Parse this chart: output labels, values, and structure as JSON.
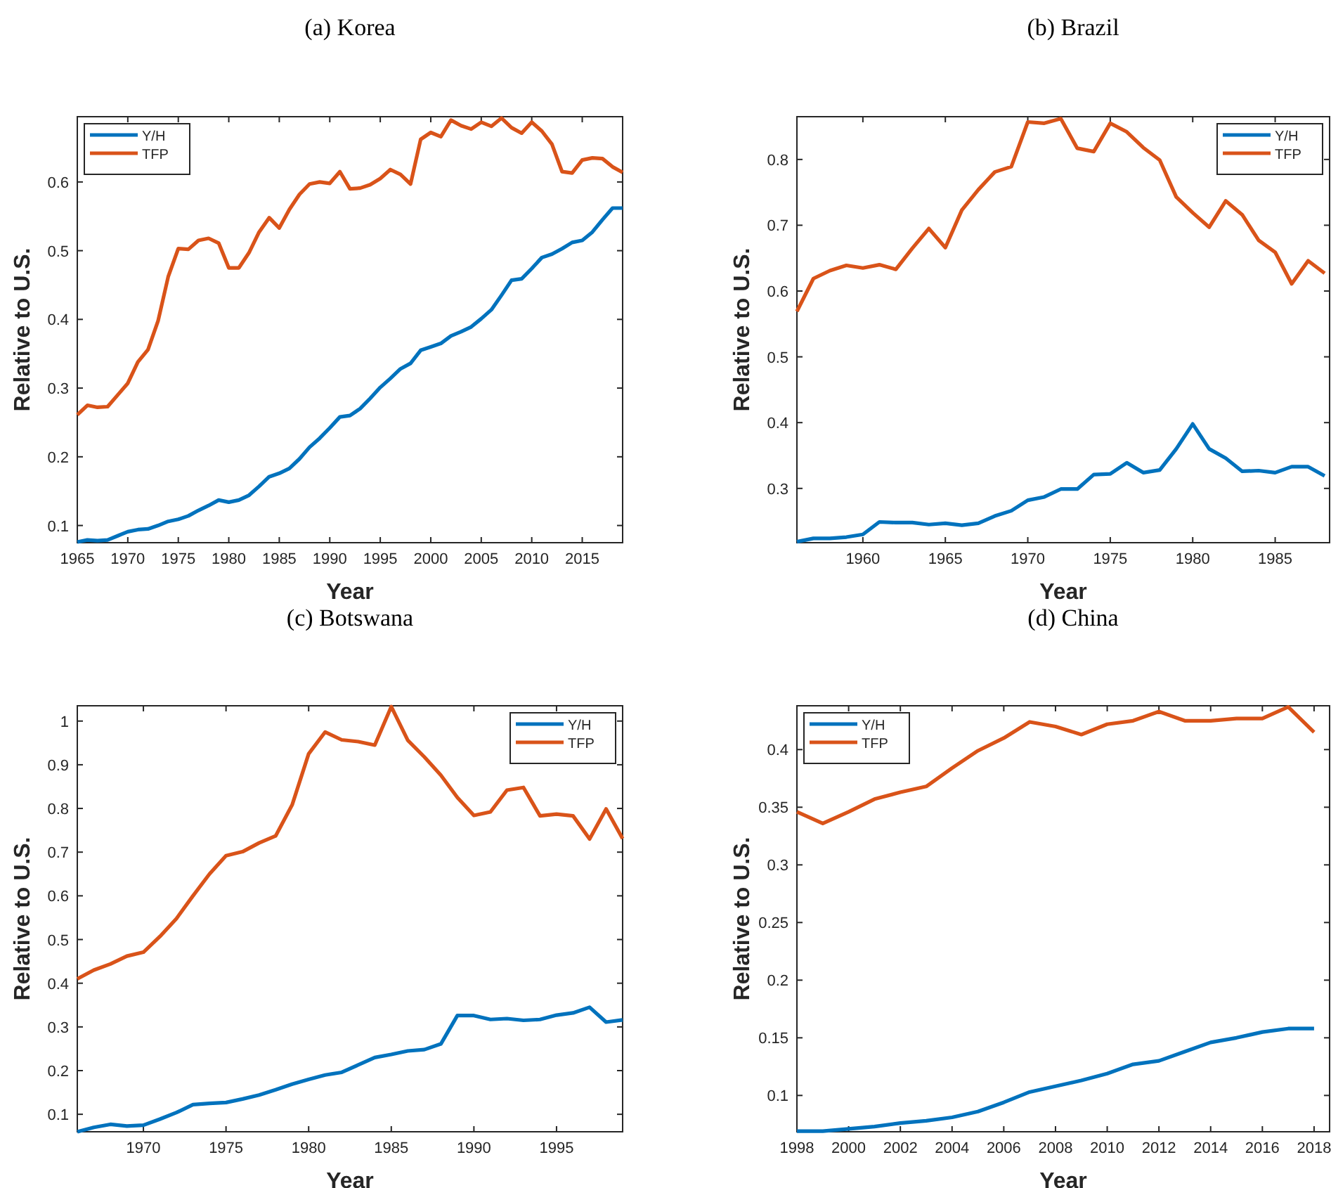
{
  "chart_data": [
    {
      "type": "line",
      "title": "(a) Korea",
      "xlabel": "Year",
      "ylabel": "Relative to U.S.",
      "xlim": [
        1965,
        2019
      ],
      "ylim": [
        0.075,
        0.695
      ],
      "xticks": [
        1965,
        1970,
        1975,
        1980,
        1985,
        1990,
        1995,
        2000,
        2005,
        2010,
        2015
      ],
      "yticks": [
        0.1,
        0.2,
        0.3,
        0.4,
        0.5,
        0.6
      ],
      "legend": "top left",
      "grid": false,
      "x": [
        1965,
        1966,
        1967,
        1968,
        1969,
        1970,
        1971,
        1972,
        1973,
        1974,
        1975,
        1976,
        1977,
        1978,
        1979,
        1980,
        1981,
        1982,
        1983,
        1984,
        1985,
        1986,
        1987,
        1988,
        1989,
        1990,
        1991,
        1992,
        1993,
        1994,
        1995,
        1996,
        1997,
        1998,
        1999,
        2000,
        2001,
        2002,
        2003,
        2004,
        2005,
        2006,
        2007,
        2008,
        2009,
        2010,
        2011,
        2012,
        2013,
        2014,
        2015,
        2016,
        2017,
        2018,
        2019
      ],
      "series": [
        {
          "name": "Y/H",
          "color": "#0072bd",
          "values": [
            0.076,
            0.079,
            0.078,
            0.079,
            0.085,
            0.091,
            0.094,
            0.095,
            0.1,
            0.106,
            0.109,
            0.114,
            0.122,
            0.129,
            0.137,
            0.134,
            0.137,
            0.144,
            0.157,
            0.171,
            0.176,
            0.183,
            0.197,
            0.214,
            0.227,
            0.242,
            0.258,
            0.26,
            0.27,
            0.285,
            0.301,
            0.314,
            0.328,
            0.336,
            0.355,
            0.36,
            0.365,
            0.376,
            0.382,
            0.389,
            0.401,
            0.414,
            0.435,
            0.457,
            0.459,
            0.474,
            0.49,
            0.495,
            0.503,
            0.512,
            0.515,
            0.527,
            0.545,
            0.562,
            0.562
          ]
        },
        {
          "name": "TFP",
          "color": "#d95319",
          "values": [
            0.261,
            0.275,
            0.272,
            0.273,
            0.29,
            0.307,
            0.338,
            0.356,
            0.398,
            0.462,
            0.503,
            0.502,
            0.515,
            0.518,
            0.511,
            0.475,
            0.475,
            0.497,
            0.527,
            0.548,
            0.533,
            0.56,
            0.582,
            0.597,
            0.6,
            0.598,
            0.615,
            0.59,
            0.591,
            0.596,
            0.605,
            0.618,
            0.611,
            0.597,
            0.662,
            0.672,
            0.666,
            0.69,
            0.682,
            0.677,
            0.687,
            0.681,
            0.693,
            0.679,
            0.671,
            0.687,
            0.674,
            0.655,
            0.615,
            0.613,
            0.632,
            0.635,
            0.634,
            0.622,
            0.614
          ]
        }
      ]
    },
    {
      "type": "line",
      "title": "(b) Brazil",
      "xlabel": "Year",
      "ylabel": "Relative to U.S.",
      "xlim": [
        1956,
        1988.3
      ],
      "ylim": [
        0.2175,
        0.865
      ],
      "xticks": [
        1960,
        1965,
        1970,
        1975,
        1980,
        1985
      ],
      "yticks": [
        0.3,
        0.4,
        0.5,
        0.6,
        0.7,
        0.8
      ],
      "legend": "top right",
      "grid": false,
      "x": [
        1956,
        1957,
        1958,
        1959,
        1960,
        1961,
        1962,
        1963,
        1964,
        1965,
        1966,
        1967,
        1968,
        1969,
        1970,
        1971,
        1972,
        1973,
        1974,
        1975,
        1976,
        1977,
        1978,
        1979,
        1980,
        1981,
        1982,
        1983,
        1984,
        1985,
        1986,
        1987,
        1988
      ],
      "series": [
        {
          "name": "Y/H",
          "color": "#0072bd",
          "values": [
            0.219,
            0.224,
            0.224,
            0.226,
            0.23,
            0.249,
            0.248,
            0.248,
            0.245,
            0.247,
            0.244,
            0.247,
            0.258,
            0.266,
            0.282,
            0.287,
            0.299,
            0.299,
            0.321,
            0.322,
            0.339,
            0.324,
            0.328,
            0.36,
            0.398,
            0.36,
            0.346,
            0.326,
            0.327,
            0.324,
            0.333,
            0.333,
            0.319
          ]
        },
        {
          "name": "TFP",
          "color": "#d95319",
          "values": [
            0.569,
            0.619,
            0.631,
            0.639,
            0.635,
            0.64,
            0.633,
            0.665,
            0.695,
            0.666,
            0.723,
            0.754,
            0.781,
            0.789,
            0.857,
            0.855,
            0.862,
            0.817,
            0.812,
            0.855,
            0.842,
            0.818,
            0.799,
            0.743,
            0.719,
            0.697,
            0.737,
            0.716,
            0.677,
            0.659,
            0.611,
            0.646,
            0.627
          ]
        }
      ]
    },
    {
      "type": "line",
      "title": "(c) Botswana",
      "xlabel": "Year",
      "ylabel": "Relative to U.S.",
      "xlim": [
        1966,
        1999
      ],
      "ylim": [
        0.06,
        1.035
      ],
      "xticks": [
        1970,
        1975,
        1980,
        1985,
        1990,
        1995
      ],
      "yticks": [
        0.1,
        0.2,
        0.3,
        0.4,
        0.5,
        0.6,
        0.7,
        0.8,
        0.9,
        1
      ],
      "legend": "top right",
      "grid": false,
      "x": [
        1966,
        1967,
        1968,
        1969,
        1970,
        1971,
        1972,
        1973,
        1974,
        1975,
        1976,
        1977,
        1978,
        1979,
        1980,
        1981,
        1982,
        1983,
        1984,
        1985,
        1986,
        1987,
        1988,
        1989,
        1990,
        1991,
        1992,
        1993,
        1994,
        1995,
        1996,
        1997,
        1998,
        1999
      ],
      "series": [
        {
          "name": "Y/H",
          "color": "#0072bd",
          "values": [
            0.06,
            0.07,
            0.077,
            0.073,
            0.075,
            0.089,
            0.104,
            0.122,
            0.125,
            0.127,
            0.135,
            0.144,
            0.156,
            0.169,
            0.18,
            0.19,
            0.196,
            0.213,
            0.23,
            0.237,
            0.245,
            0.248,
            0.261,
            0.326,
            0.326,
            0.317,
            0.319,
            0.315,
            0.317,
            0.327,
            0.332,
            0.345,
            0.311,
            0.316
          ]
        },
        {
          "name": "TFP",
          "color": "#d95319",
          "values": [
            0.41,
            0.43,
            0.444,
            0.462,
            0.471,
            0.507,
            0.548,
            0.6,
            0.65,
            0.692,
            0.701,
            0.721,
            0.737,
            0.808,
            0.925,
            0.975,
            0.957,
            0.953,
            0.945,
            1.033,
            0.956,
            0.918,
            0.876,
            0.825,
            0.784,
            0.792,
            0.842,
            0.848,
            0.783,
            0.787,
            0.783,
            0.73,
            0.799,
            0.731
          ]
        }
      ]
    },
    {
      "type": "line",
      "title": "(d) China",
      "xlabel": "Year",
      "ylabel": "Relative to U.S.",
      "xlim": [
        1998,
        2018.6
      ],
      "ylim": [
        0.0685,
        0.438
      ],
      "xticks": [
        1998,
        2000,
        2002,
        2004,
        2006,
        2008,
        2010,
        2012,
        2014,
        2016,
        2018
      ],
      "yticks": [
        0.1,
        0.15,
        0.2,
        0.25,
        0.3,
        0.35,
        0.4
      ],
      "legend": "top left",
      "grid": false,
      "x": [
        1998,
        1999,
        2000,
        2001,
        2002,
        2003,
        2004,
        2005,
        2006,
        2007,
        2008,
        2009,
        2010,
        2011,
        2012,
        2013,
        2014,
        2015,
        2016,
        2017,
        2018
      ],
      "series": [
        {
          "name": "Y/H",
          "color": "#0072bd",
          "values": [
            0.069,
            0.069,
            0.071,
            0.073,
            0.076,
            0.078,
            0.081,
            0.086,
            0.094,
            0.103,
            0.108,
            0.113,
            0.119,
            0.127,
            0.13,
            0.138,
            0.146,
            0.15,
            0.155,
            0.158,
            0.158
          ]
        },
        {
          "name": "TFP",
          "color": "#d95319",
          "values": [
            0.346,
            0.336,
            0.346,
            0.357,
            0.363,
            0.368,
            0.384,
            0.399,
            0.41,
            0.424,
            0.42,
            0.413,
            0.422,
            0.425,
            0.433,
            0.425,
            0.425,
            0.427,
            0.427,
            0.437,
            0.415
          ]
        }
      ]
    }
  ]
}
